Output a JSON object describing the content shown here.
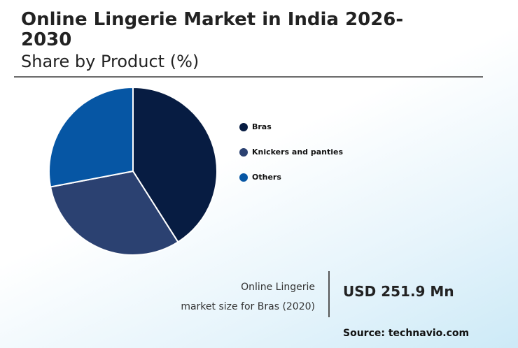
{
  "header": {
    "title": "Online Lingerie Market in India 2026-2030",
    "subtitle": "Share by Product (%)"
  },
  "chart_data": {
    "type": "pie",
    "categories": [
      "Bras",
      "Knickers and panties",
      "Others"
    ],
    "values": [
      41,
      31,
      28
    ],
    "colors": [
      "#071c42",
      "#2b4171",
      "#0656a4"
    ],
    "legend_position": "right"
  },
  "stat": {
    "label_line1": "Online Lingerie",
    "label_line2": "market size for Bras (2020)",
    "value": "USD 251.9 Mn"
  },
  "footer": {
    "source": "Source: technavio.com"
  }
}
